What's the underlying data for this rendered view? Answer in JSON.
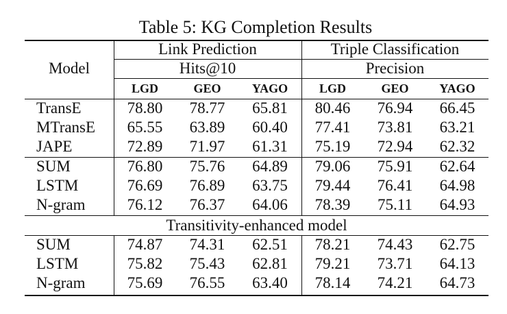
{
  "caption": "Table 5: KG Completion Results",
  "header": {
    "model": "Model",
    "group_link": "Link Prediction",
    "group_triple": "Triple Classification",
    "metric_link": "Hits@10",
    "metric_triple": "Precision",
    "datasets": [
      "LGD",
      "GEO",
      "YAGO",
      "LGD",
      "GEO",
      "YAGO"
    ]
  },
  "section_label": "Transitivity-enhanced model",
  "groups": [
    {
      "rows": [
        {
          "model": "TransE",
          "values": [
            "78.80",
            "78.77",
            "65.81",
            "80.46",
            "76.94",
            "66.45"
          ]
        },
        {
          "model": "MTransE",
          "values": [
            "65.55",
            "63.89",
            "60.40",
            "77.41",
            "73.81",
            "63.21"
          ]
        },
        {
          "model": "JAPE",
          "values": [
            "72.89",
            "71.97",
            "61.31",
            "75.19",
            "72.94",
            "62.32"
          ]
        }
      ]
    },
    {
      "rows": [
        {
          "model": "SUM",
          "values": [
            "76.80",
            "75.76",
            "64.89",
            "79.06",
            "75.91",
            "62.64"
          ]
        },
        {
          "model": "LSTM",
          "values": [
            "76.69",
            "76.89",
            "63.75",
            "79.44",
            "76.41",
            "64.98"
          ]
        },
        {
          "model": "N-gram",
          "values": [
            "76.12",
            "76.37",
            "64.06",
            "78.39",
            "75.11",
            "64.93"
          ]
        }
      ]
    },
    {
      "rows": [
        {
          "model": "SUM",
          "values": [
            "74.87",
            "74.31",
            "62.51",
            "78.21",
            "74.43",
            "62.75"
          ]
        },
        {
          "model": "LSTM",
          "values": [
            "75.82",
            "75.43",
            "62.81",
            "79.21",
            "73.71",
            "64.13"
          ]
        },
        {
          "model": "N-gram",
          "values": [
            "75.69",
            "76.55",
            "63.40",
            "78.14",
            "74.21",
            "64.73"
          ]
        }
      ]
    }
  ]
}
